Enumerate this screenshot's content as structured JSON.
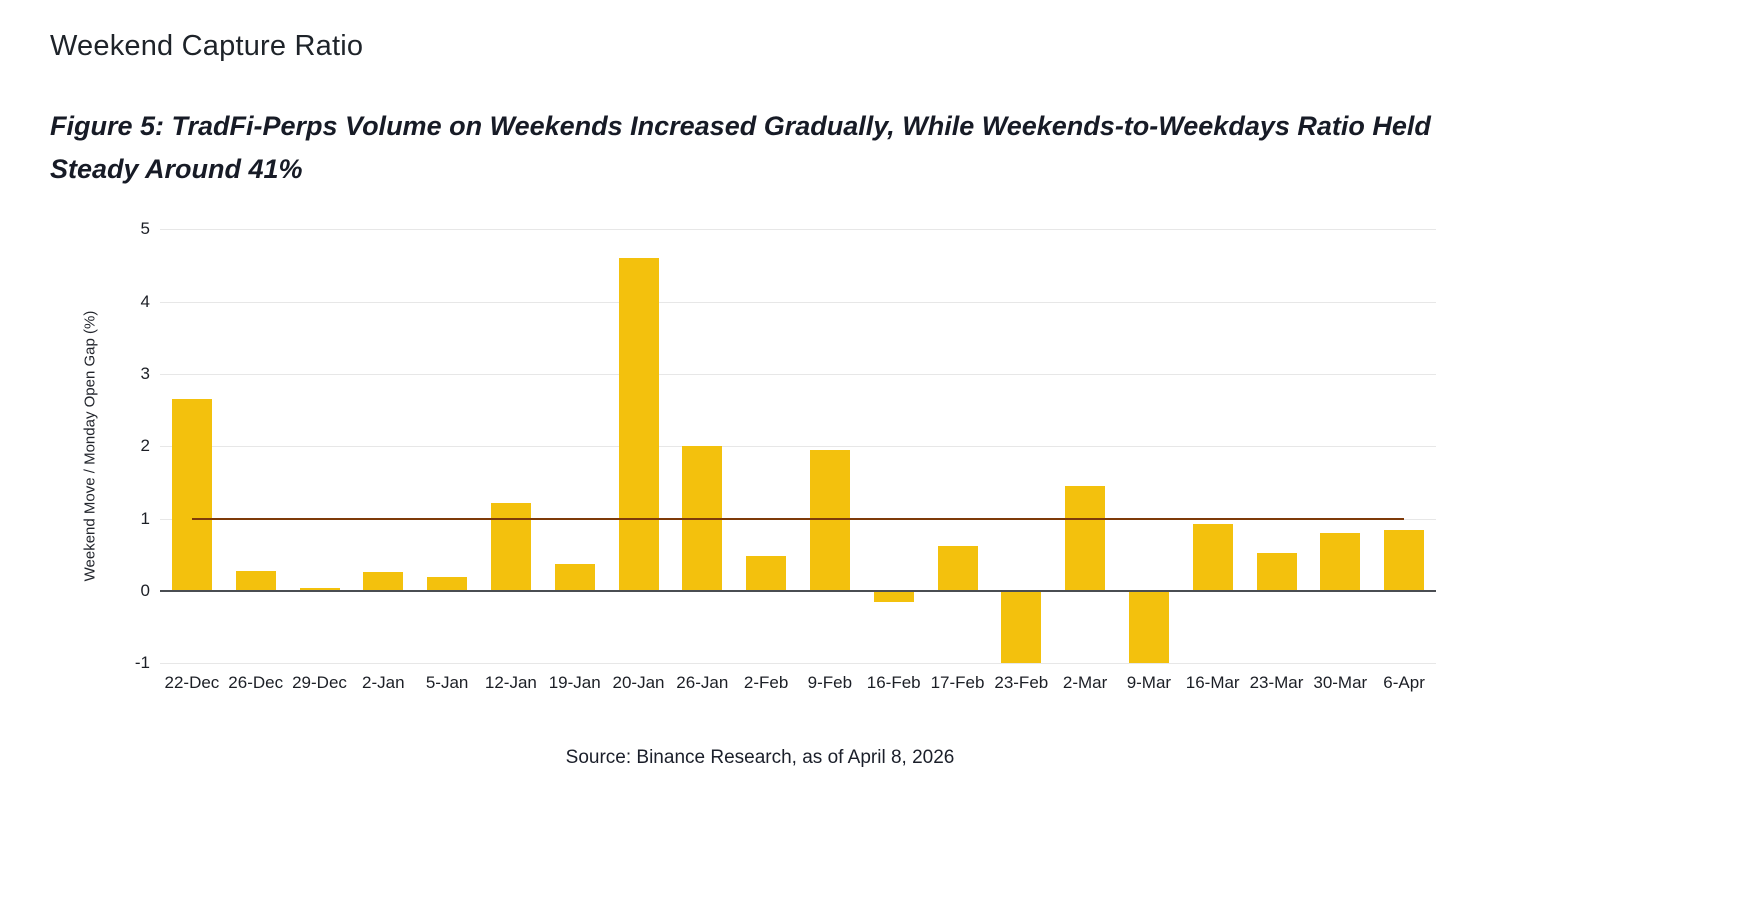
{
  "header": {
    "title": "Weekend Capture Ratio"
  },
  "caption": "Figure 5: TradFi-Perps Volume on Weekends Increased Gradually, While Weekends-to-Weekdays Ratio Held Steady Around 41%",
  "source": "Source: Binance Research, as of April 8, 2026",
  "colors": {
    "bar": "#F3C10D",
    "reference_line": "#7E3A09",
    "grid": "#E7E7E7",
    "zero_axis": "#4A4D52",
    "text": "#1B1F2A"
  },
  "chart_data": {
    "type": "bar",
    "title": "Weekend Capture Ratio",
    "categories": [
      "22-Dec",
      "26-Dec",
      "29-Dec",
      "2-Jan",
      "5-Jan",
      "12-Jan",
      "19-Jan",
      "20-Jan",
      "26-Jan",
      "2-Feb",
      "9-Feb",
      "16-Feb",
      "17-Feb",
      "23-Feb",
      "2-Mar",
      "9-Mar",
      "16-Mar",
      "23-Mar",
      "30-Mar",
      "6-Apr"
    ],
    "values": [
      2.65,
      0.28,
      0.04,
      0.26,
      0.2,
      1.22,
      0.38,
      4.6,
      2.0,
      0.48,
      1.95,
      -0.15,
      0.62,
      -1.0,
      1.45,
      -1.0,
      0.93,
      0.52,
      0.8,
      0.85
    ],
    "xlabel": "",
    "ylabel": "Weekend Move / Monday Open Gap (%)",
    "ylim": [
      -1,
      5
    ],
    "yticks": [
      -1,
      0,
      1,
      2,
      3,
      4,
      5
    ],
    "grid": true,
    "legend": "none",
    "reference_line_y": 1.0
  }
}
